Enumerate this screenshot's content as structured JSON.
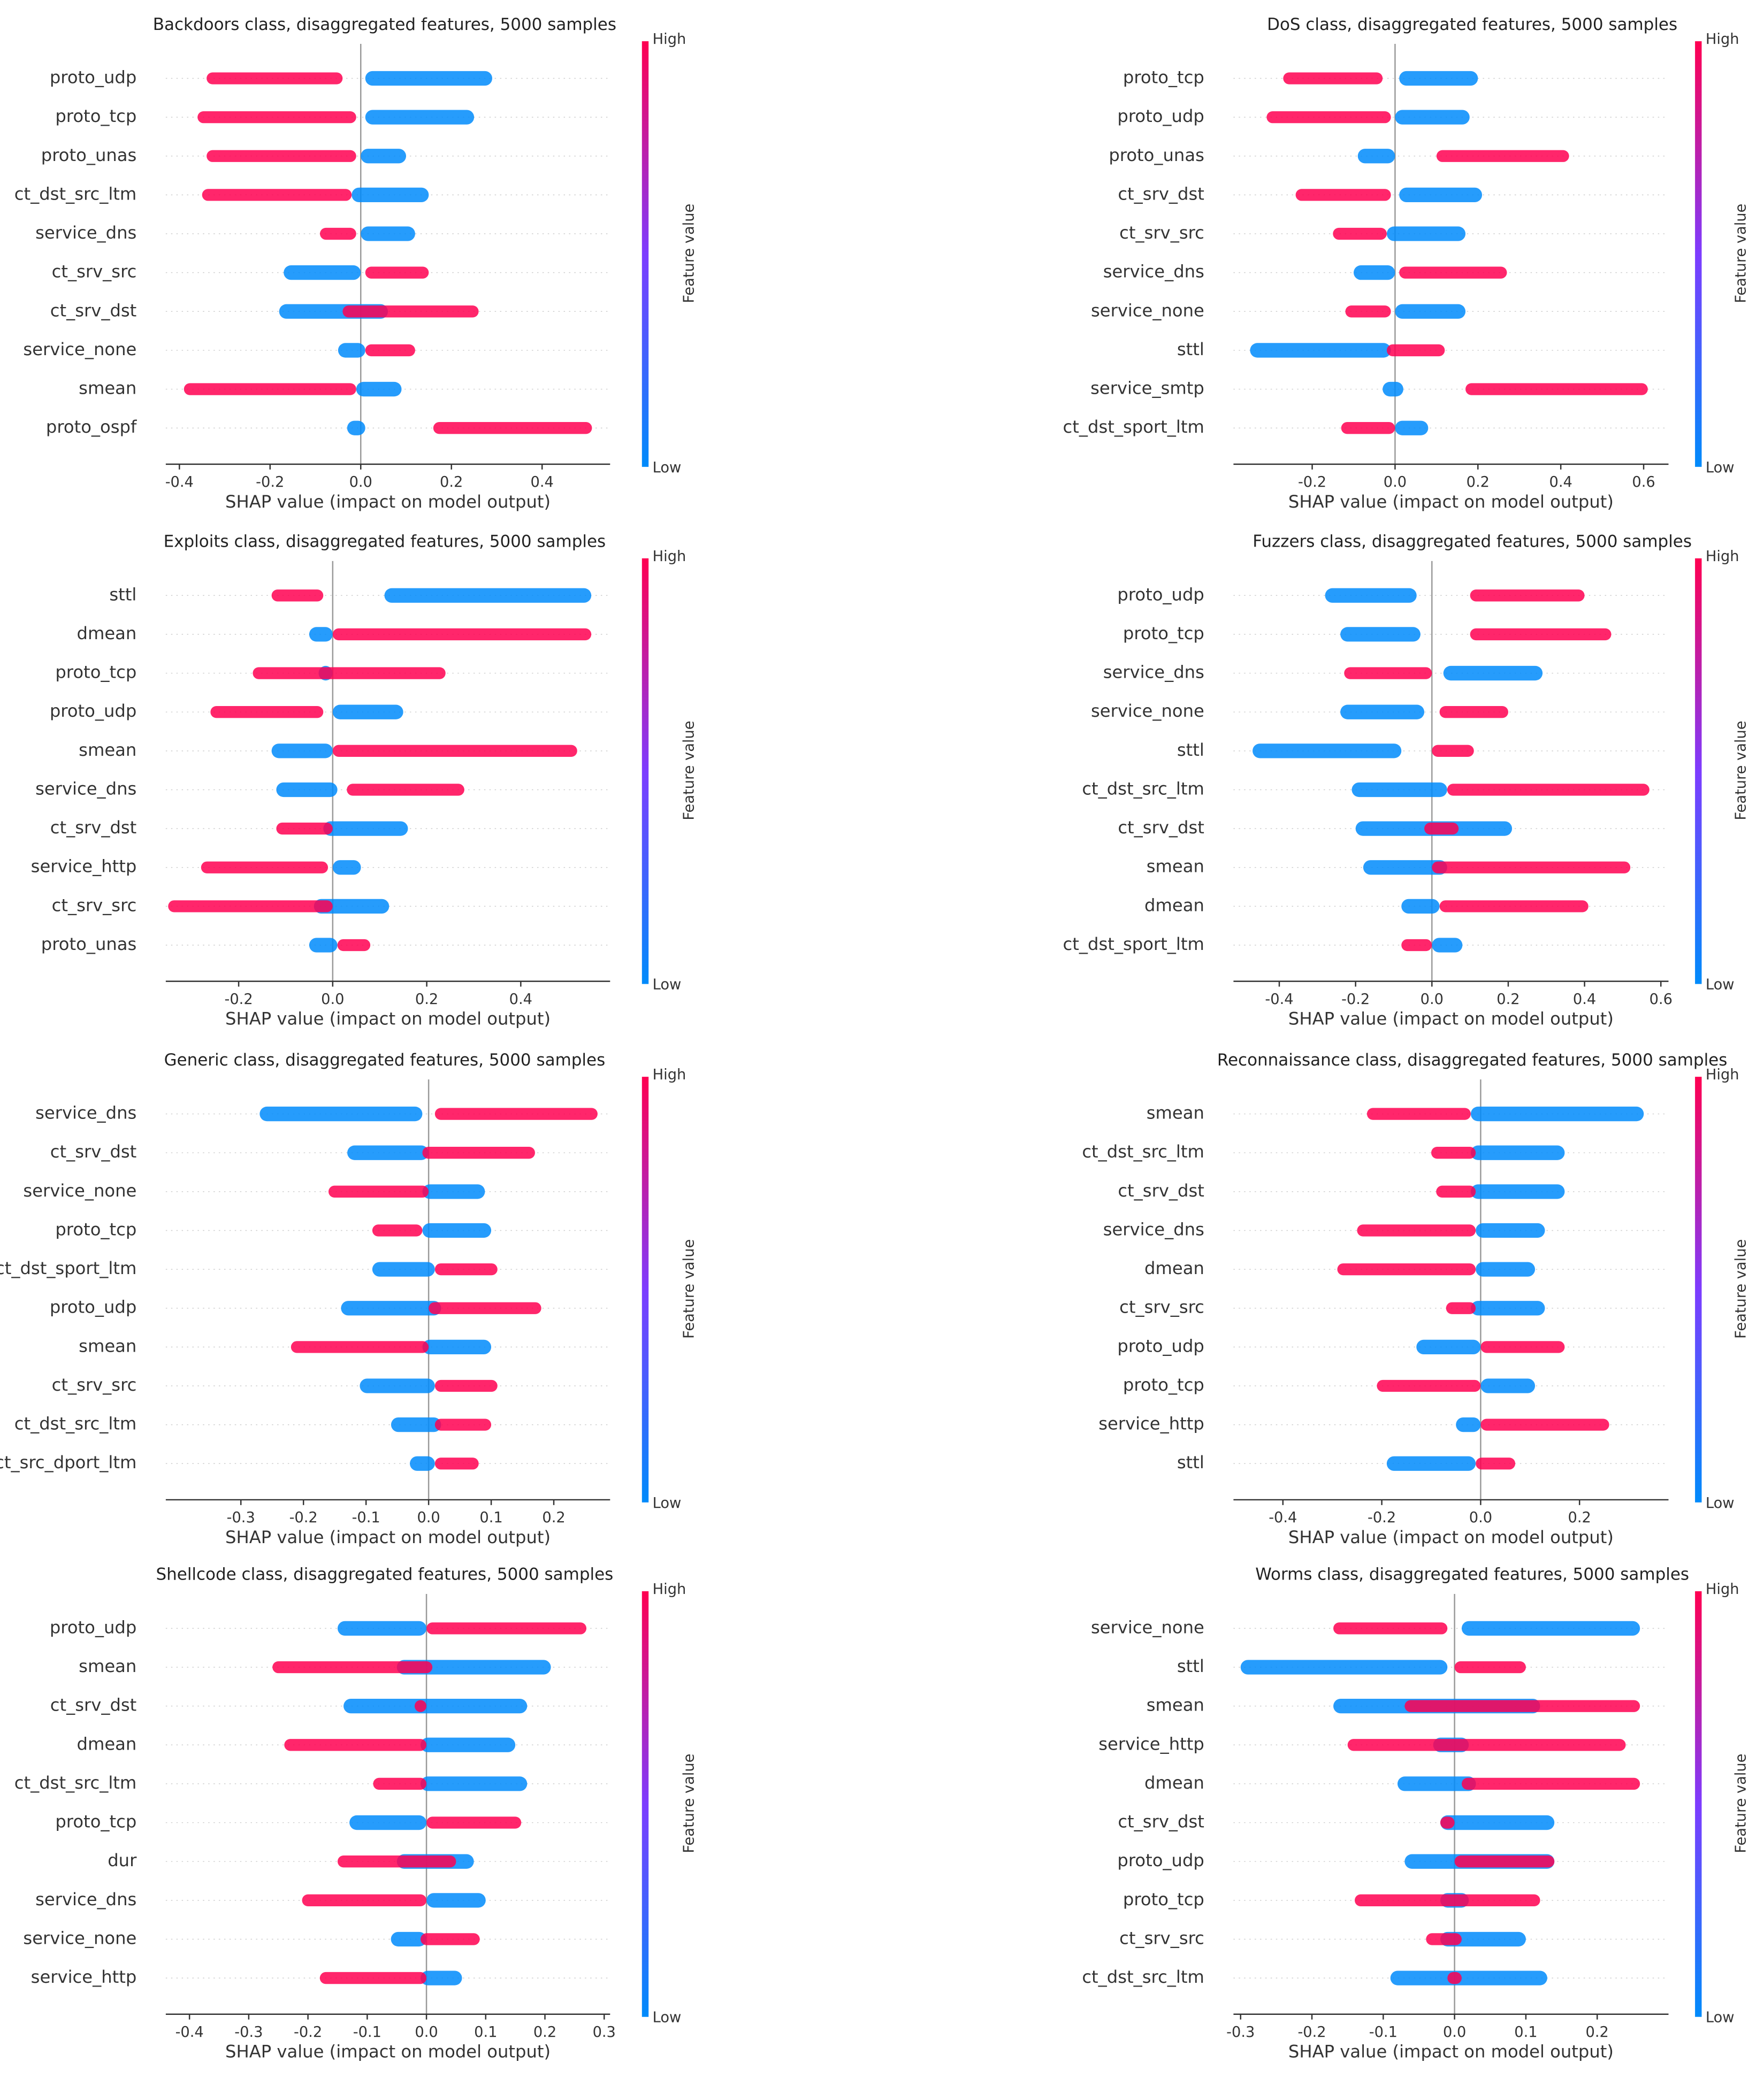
{
  "chart_data": [
    {
      "type": "beeswarm",
      "title": "Backdoors class, disaggregated features, 5000 samples",
      "xlabel": "SHAP value (impact on model output)",
      "colorbar_label": "Feature value",
      "xlim": [
        -0.43,
        0.55
      ],
      "xticks": [
        -0.4,
        -0.2,
        {
          "value": 0,
          "label": "0.0"
        },
        0.2,
        0.4
      ],
      "features": [
        "proto_udp",
        "proto_tcp",
        "proto_unas",
        "ct_dst_src_ltm",
        "service_dns",
        "ct_srv_src",
        "ct_srv_dst",
        "service_none",
        "smean",
        "proto_ospf"
      ],
      "series": [
        {
          "name": "Low",
          "color": "#008bfb",
          "values": [
            [
              0.01,
              0.29
            ],
            [
              0.01,
              0.25
            ],
            [
              0.0,
              0.1
            ],
            [
              -0.02,
              0.15
            ],
            [
              0.0,
              0.12
            ],
            [
              -0.17,
              0.0
            ],
            [
              -0.18,
              0.06
            ],
            [
              -0.05,
              0.01
            ],
            [
              -0.01,
              0.09
            ],
            [
              -0.03,
              0.01
            ]
          ]
        },
        {
          "name": "High",
          "color": "#ff0051",
          "values": [
            [
              -0.34,
              -0.04
            ],
            [
              -0.36,
              -0.01
            ],
            [
              -0.34,
              -0.01
            ],
            [
              -0.35,
              -0.02
            ],
            [
              -0.09,
              -0.01
            ],
            [
              0.01,
              0.15
            ],
            [
              -0.04,
              0.26
            ],
            [
              0.01,
              0.12
            ],
            [
              -0.39,
              -0.01
            ],
            [
              0.16,
              0.51
            ]
          ]
        }
      ]
    },
    {
      "type": "beeswarm",
      "title": "DoS class, disaggregated features, 5000 samples",
      "xlabel": "SHAP value (impact on model output)",
      "colorbar_label": "Feature value",
      "xlim": [
        -0.39,
        0.66
      ],
      "xticks": [
        -0.2,
        {
          "value": 0,
          "label": "0.0"
        },
        0.2,
        0.4,
        0.6
      ],
      "features": [
        "proto_tcp",
        "proto_udp",
        "proto_unas",
        "ct_srv_dst",
        "ct_srv_src",
        "service_dns",
        "service_none",
        "sttl",
        "service_smtp",
        "ct_dst_sport_ltm"
      ],
      "series": [
        {
          "name": "Low",
          "color": "#008bfb",
          "values": [
            [
              0.01,
              0.2
            ],
            [
              0.0,
              0.18
            ],
            [
              -0.09,
              0.0
            ],
            [
              0.01,
              0.21
            ],
            [
              -0.02,
              0.17
            ],
            [
              -0.1,
              0.0
            ],
            [
              0.0,
              0.17
            ],
            [
              -0.35,
              -0.01
            ],
            [
              -0.03,
              0.02
            ],
            [
              0.0,
              0.08
            ]
          ]
        },
        {
          "name": "High",
          "color": "#ff0051",
          "values": [
            [
              -0.27,
              -0.03
            ],
            [
              -0.31,
              -0.01
            ],
            [
              0.1,
              0.42
            ],
            [
              -0.24,
              -0.01
            ],
            [
              -0.15,
              -0.02
            ],
            [
              0.01,
              0.27
            ],
            [
              -0.12,
              -0.01
            ],
            [
              -0.02,
              0.12
            ],
            [
              0.17,
              0.61
            ],
            [
              -0.13,
              0.0
            ]
          ]
        }
      ]
    },
    {
      "type": "beeswarm",
      "title": "Exploits class, disaggregated features, 5000 samples",
      "xlabel": "SHAP value (impact on model output)",
      "colorbar_label": "Feature value",
      "xlim": [
        -0.355,
        0.59
      ],
      "xticks": [
        -0.2,
        {
          "value": 0,
          "label": "0.0"
        },
        0.2,
        0.4
      ],
      "features": [
        "sttl",
        "dmean",
        "proto_tcp",
        "proto_udp",
        "smean",
        "service_dns",
        "ct_srv_dst",
        "service_http",
        "ct_srv_src",
        "proto_unas"
      ],
      "series": [
        {
          "name": "Low",
          "color": "#008bfb",
          "values": [
            [
              0.11,
              0.55
            ],
            [
              -0.05,
              0.0
            ],
            [
              -0.03,
              0.0
            ],
            [
              0.0,
              0.15
            ],
            [
              -0.13,
              0.0
            ],
            [
              -0.12,
              0.01
            ],
            [
              -0.02,
              0.16
            ],
            [
              0.0,
              0.06
            ],
            [
              -0.04,
              0.12
            ],
            [
              -0.05,
              0.01
            ]
          ]
        },
        {
          "name": "High",
          "color": "#ff0051",
          "values": [
            [
              -0.13,
              -0.02
            ],
            [
              0.0,
              0.55
            ],
            [
              -0.17,
              0.24
            ],
            [
              -0.26,
              -0.02
            ],
            [
              0.0,
              0.52
            ],
            [
              0.03,
              0.28
            ],
            [
              -0.12,
              0.0
            ],
            [
              -0.28,
              -0.01
            ],
            [
              -0.35,
              0.0
            ],
            [
              0.01,
              0.08
            ]
          ]
        }
      ]
    },
    {
      "type": "beeswarm",
      "title": "Fuzzers class, disaggregated features, 5000 samples",
      "xlabel": "SHAP value (impact on model output)",
      "colorbar_label": "Feature value",
      "xlim": [
        -0.52,
        0.62
      ],
      "xticks": [
        -0.4,
        -0.2,
        {
          "value": 0,
          "label": "0.0"
        },
        0.2,
        0.4,
        0.6
      ],
      "features": [
        "proto_udp",
        "proto_tcp",
        "service_dns",
        "service_none",
        "sttl",
        "ct_dst_src_ltm",
        "ct_srv_dst",
        "smean",
        "dmean",
        "ct_dst_sport_ltm"
      ],
      "series": [
        {
          "name": "Low",
          "color": "#008bfb",
          "values": [
            [
              -0.28,
              -0.04
            ],
            [
              -0.24,
              -0.03
            ],
            [
              0.03,
              0.29
            ],
            [
              -0.24,
              -0.02
            ],
            [
              -0.47,
              -0.08
            ],
            [
              -0.21,
              0.04
            ],
            [
              -0.2,
              0.21
            ],
            [
              -0.18,
              0.04
            ],
            [
              -0.08,
              0.02
            ],
            [
              0.0,
              0.08
            ]
          ]
        },
        {
          "name": "High",
          "color": "#ff0051",
          "values": [
            [
              0.1,
              0.4
            ],
            [
              0.1,
              0.47
            ],
            [
              -0.23,
              0.0
            ],
            [
              0.02,
              0.2
            ],
            [
              0.0,
              0.11
            ],
            [
              0.04,
              0.57
            ],
            [
              -0.02,
              0.07
            ],
            [
              0.0,
              0.52
            ],
            [
              0.02,
              0.41
            ],
            [
              -0.08,
              0.0
            ]
          ]
        }
      ]
    },
    {
      "type": "beeswarm",
      "title": "Generic class, disaggregated features, 5000 samples",
      "xlabel": "SHAP value (impact on model output)",
      "colorbar_label": "Feature value",
      "xlim": [
        -0.42,
        0.29
      ],
      "xticks": [
        -0.3,
        -0.2,
        -0.1,
        {
          "value": 0,
          "label": "0.0"
        },
        0.1,
        0.2
      ],
      "features": [
        "service_dns",
        "ct_srv_dst",
        "service_none",
        "proto_tcp",
        "ct_dst_sport_ltm",
        "proto_udp",
        "smean",
        "ct_srv_src",
        "ct_dst_src_ltm",
        "ct_src_dport_ltm"
      ],
      "series": [
        {
          "name": "Low",
          "color": "#008bfb",
          "values": [
            [
              -0.27,
              -0.01
            ],
            [
              -0.13,
              0.0
            ],
            [
              -0.01,
              0.09
            ],
            [
              -0.01,
              0.1
            ],
            [
              -0.09,
              0.01
            ],
            [
              -0.14,
              0.02
            ],
            [
              -0.01,
              0.1
            ],
            [
              -0.11,
              0.01
            ],
            [
              -0.06,
              0.02
            ],
            [
              -0.03,
              0.01
            ]
          ]
        },
        {
          "name": "High",
          "color": "#ff0051",
          "values": [
            [
              0.01,
              0.27
            ],
            [
              -0.01,
              0.17
            ],
            [
              -0.16,
              0.0
            ],
            [
              -0.09,
              -0.01
            ],
            [
              0.01,
              0.11
            ],
            [
              0.0,
              0.18
            ],
            [
              -0.22,
              0.0
            ],
            [
              0.01,
              0.11
            ],
            [
              0.01,
              0.1
            ],
            [
              0.01,
              0.08
            ]
          ]
        }
      ]
    },
    {
      "type": "beeswarm",
      "title": "Reconnaissance class, disaggregated features, 5000 samples",
      "xlabel": "SHAP value (impact on model output)",
      "colorbar_label": "Feature value",
      "xlim": [
        -0.5,
        0.38
      ],
      "xticks": [
        -0.4,
        -0.2,
        {
          "value": 0,
          "label": "0.0"
        },
        0.2
      ],
      "features": [
        "smean",
        "ct_dst_src_ltm",
        "ct_srv_dst",
        "service_dns",
        "dmean",
        "ct_srv_src",
        "proto_udp",
        "proto_tcp",
        "service_http",
        "sttl"
      ],
      "series": [
        {
          "name": "Low",
          "color": "#008bfb",
          "values": [
            [
              -0.02,
              0.33
            ],
            [
              -0.02,
              0.17
            ],
            [
              -0.02,
              0.17
            ],
            [
              -0.01,
              0.13
            ],
            [
              -0.01,
              0.11
            ],
            [
              -0.02,
              0.13
            ],
            [
              -0.13,
              0.0
            ],
            [
              0.0,
              0.11
            ],
            [
              -0.05,
              0.0
            ],
            [
              -0.19,
              -0.01
            ]
          ]
        },
        {
          "name": "High",
          "color": "#ff0051",
          "values": [
            [
              -0.23,
              -0.02
            ],
            [
              -0.1,
              -0.01
            ],
            [
              -0.09,
              -0.01
            ],
            [
              -0.25,
              -0.01
            ],
            [
              -0.29,
              -0.01
            ],
            [
              -0.07,
              -0.01
            ],
            [
              0.0,
              0.17
            ],
            [
              -0.21,
              0.0
            ],
            [
              0.0,
              0.26
            ],
            [
              -0.01,
              0.07
            ]
          ]
        }
      ]
    },
    {
      "type": "beeswarm",
      "title": "Shellcode class, disaggregated features, 5000 samples",
      "xlabel": "SHAP value (impact on model output)",
      "colorbar_label": "Feature value",
      "xlim": [
        -0.44,
        0.31
      ],
      "xticks": [
        -0.4,
        -0.3,
        -0.2,
        -0.1,
        {
          "value": 0,
          "label": "0.0"
        },
        0.1,
        0.2,
        0.3
      ],
      "features": [
        "proto_udp",
        "smean",
        "ct_srv_dst",
        "dmean",
        "ct_dst_src_ltm",
        "proto_tcp",
        "dur",
        "service_dns",
        "service_none",
        "service_http"
      ],
      "series": [
        {
          "name": "Low",
          "color": "#008bfb",
          "values": [
            [
              -0.15,
              0.0
            ],
            [
              -0.05,
              0.21
            ],
            [
              -0.14,
              0.17
            ],
            [
              -0.01,
              0.15
            ],
            [
              -0.01,
              0.17
            ],
            [
              -0.13,
              0.0
            ],
            [
              -0.05,
              0.08
            ],
            [
              0.0,
              0.1
            ],
            [
              -0.06,
              0.0
            ],
            [
              -0.01,
              0.06
            ]
          ]
        },
        {
          "name": "High",
          "color": "#ff0051",
          "values": [
            [
              0.0,
              0.27
            ],
            [
              -0.26,
              0.01
            ],
            [
              -0.02,
              0.0
            ],
            [
              -0.24,
              0.0
            ],
            [
              -0.09,
              0.0
            ],
            [
              0.0,
              0.16
            ],
            [
              -0.15,
              0.05
            ],
            [
              -0.21,
              0.0
            ],
            [
              -0.01,
              0.09
            ],
            [
              -0.18,
              0.0
            ]
          ]
        }
      ]
    },
    {
      "type": "beeswarm",
      "title": "Worms class, disaggregated features, 5000 samples",
      "xlabel": "SHAP value (impact on model output)",
      "colorbar_label": "Feature value",
      "xlim": [
        -0.31,
        0.3
      ],
      "xticks": [
        -0.3,
        -0.2,
        -0.1,
        {
          "value": 0,
          "label": "0.0"
        },
        0.1,
        0.2
      ],
      "features": [
        "service_none",
        "sttl",
        "smean",
        "service_http",
        "dmean",
        "ct_srv_dst",
        "proto_udp",
        "proto_tcp",
        "ct_srv_src",
        "ct_dst_src_ltm"
      ],
      "series": [
        {
          "name": "Low",
          "color": "#008bfb",
          "values": [
            [
              0.01,
              0.26
            ],
            [
              -0.3,
              -0.01
            ],
            [
              -0.17,
              0.12
            ],
            [
              -0.03,
              0.02
            ],
            [
              -0.08,
              0.03
            ],
            [
              -0.02,
              0.14
            ],
            [
              -0.07,
              0.14
            ],
            [
              -0.02,
              0.02
            ],
            [
              -0.02,
              0.1
            ],
            [
              -0.09,
              0.13
            ]
          ]
        },
        {
          "name": "High",
          "color": "#ff0051",
          "values": [
            [
              -0.17,
              -0.01
            ],
            [
              0.0,
              0.1
            ],
            [
              -0.07,
              0.26
            ],
            [
              -0.15,
              0.24
            ],
            [
              0.01,
              0.26
            ],
            [
              -0.02,
              0.0
            ],
            [
              0.0,
              0.14
            ],
            [
              -0.14,
              0.12
            ],
            [
              -0.04,
              0.01
            ],
            [
              -0.01,
              0.01
            ]
          ]
        }
      ]
    }
  ]
}
